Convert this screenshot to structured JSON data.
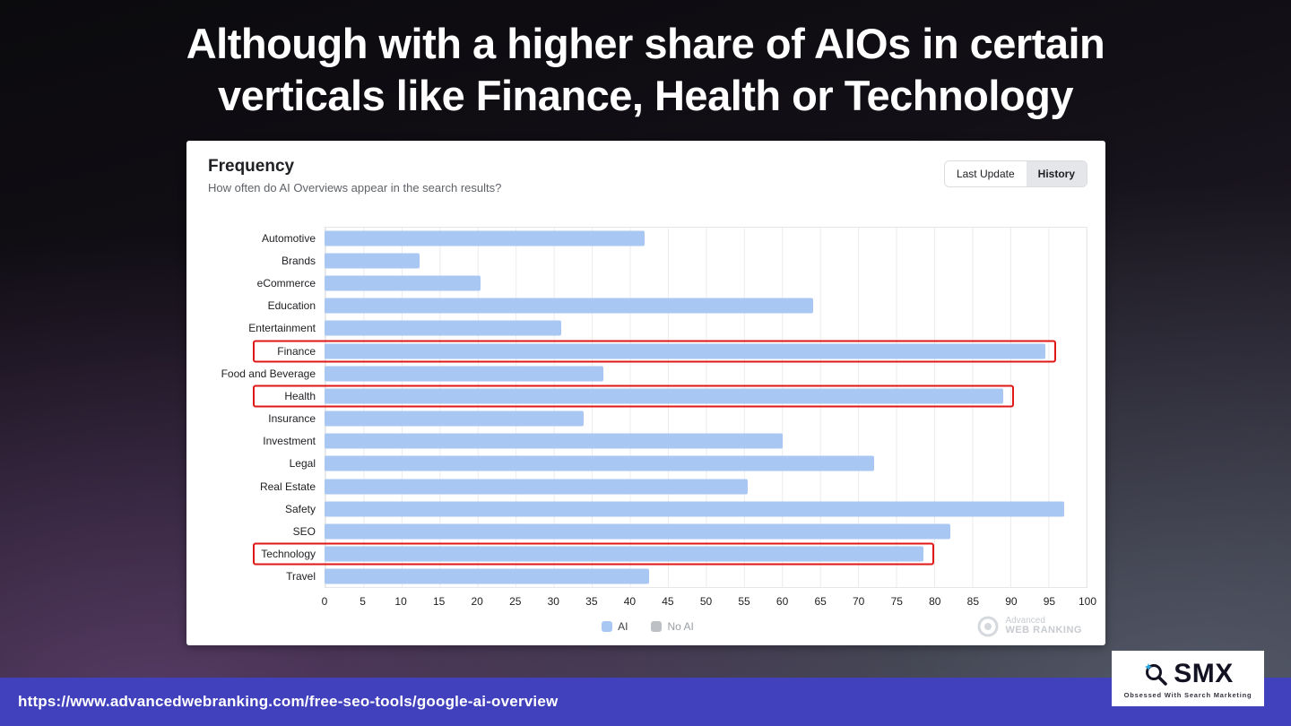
{
  "slide": {
    "title_line1": "Although with a higher share of AIOs in certain",
    "title_line2": "verticals like Finance, Health or Technology",
    "footer_url": "https://www.advancedwebranking.com/free-seo-tools/google-ai-overview"
  },
  "card": {
    "title": "Frequency",
    "subtitle": "How often do AI Overviews appear in the search results?",
    "toggle": {
      "last_update_label": "Last Update",
      "history_label": "History",
      "selected": "History"
    }
  },
  "chart_data": {
    "type": "bar",
    "orientation": "horizontal",
    "title": "Frequency",
    "xlabel": "",
    "ylabel": "",
    "xlim": [
      0,
      100
    ],
    "grid": true,
    "categories": [
      "Automotive",
      "Brands",
      "eCommerce",
      "Education",
      "Entertainment",
      "Finance",
      "Food and Beverage",
      "Health",
      "Insurance",
      "Investment",
      "Legal",
      "Real Estate",
      "Safety",
      "SEO",
      "Technology",
      "Travel"
    ],
    "values": [
      42,
      12.5,
      20.5,
      64,
      31,
      94.5,
      36.5,
      89,
      34,
      60,
      72,
      55.5,
      97,
      82,
      78.5,
      42.5
    ],
    "highlighted": [
      "Finance",
      "Health",
      "Technology"
    ],
    "highlight_color": "#e01717",
    "bar_color": "#a9c7f3",
    "x_ticks": [
      0,
      5,
      10,
      15,
      20,
      25,
      30,
      35,
      40,
      45,
      50,
      55,
      60,
      65,
      70,
      75,
      80,
      85,
      90,
      95,
      100
    ],
    "legend_position": "bottom",
    "legend": [
      {
        "label": "AI",
        "color": "#a9c7f3",
        "text_color": "#3c4043"
      },
      {
        "label": "No AI",
        "color": "#bdc1c6",
        "text_color": "#9aa0a6"
      }
    ]
  },
  "watermark": {
    "line1": "Advanced",
    "line2": "WEB RANKING"
  },
  "logo": {
    "name": "SMX",
    "tagline": "Obsessed With Search Marketing"
  }
}
